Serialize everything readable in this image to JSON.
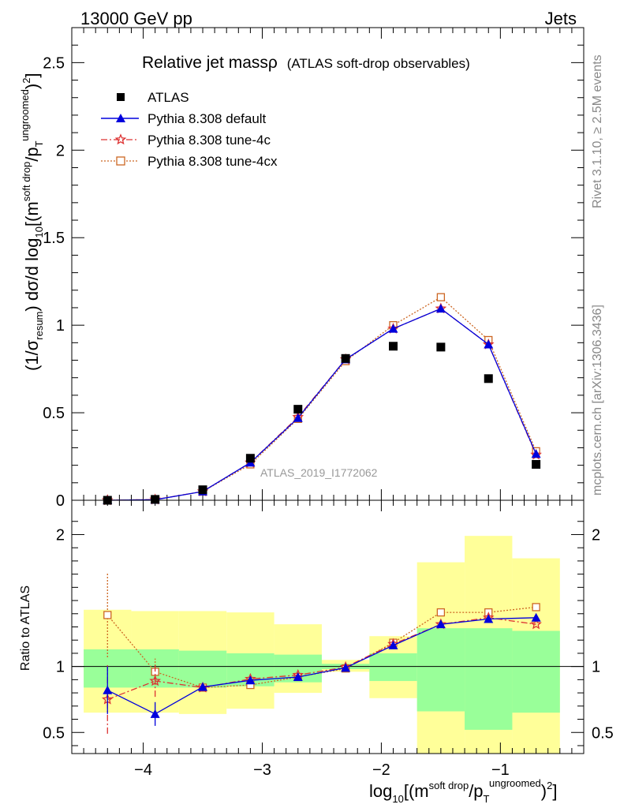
{
  "header": {
    "left": "13000 GeV pp",
    "right": "Jets",
    "title_main": "Relative jet massρ",
    "title_sub": "(ATLAS soft-drop observables)",
    "rivet": "Rivet 3.1.10, ≥ 2.5M events",
    "mcplots": "mcplots.cern.ch [arXiv:1306.3436]",
    "analysis": "ATLAS_2019_I1772062"
  },
  "axes": {
    "ylabel_main": "(1/σresum) dσ/d log10[(m^{soft drop}/p_T^{ungroomed})^2]",
    "ylabel_ratio": "Ratio to ATLAS",
    "xlabel": "log10[(m^{soft drop}/p_T^{ungroomed})^2]"
  },
  "colors": {
    "atlas": "#000000",
    "default": "#0000dd",
    "tune4c": "#dd3333",
    "tune4cx": "#cc6622",
    "band_green": "#99ff99",
    "band_yellow": "#ffff99"
  },
  "chart_data": [
    {
      "type": "line",
      "title": "Relative jet massρ (ATLAS soft-drop observables)",
      "xlabel": "log10[(m^{soft drop}/p_T^{ungroomed})^2]",
      "ylabel": "(1/σresum) dσ/d log10[(m^{soft drop}/p_T^{ungroomed})^2]",
      "xlim": [
        -4.6,
        -0.3
      ],
      "ylim": [
        0,
        2.7
      ],
      "yticks": [
        0,
        0.5,
        1,
        1.5,
        2,
        2.5
      ],
      "legend_position": "top-left",
      "x": [
        -4.3,
        -3.9,
        -3.5,
        -3.1,
        -2.7,
        -2.3,
        -1.9,
        -1.5,
        -1.1,
        -0.7
      ],
      "series": [
        {
          "name": "ATLAS",
          "marker": "square",
          "values": [
            0.0,
            0.005,
            0.06,
            0.24,
            0.52,
            0.81,
            0.88,
            0.875,
            0.695,
            0.205
          ]
        },
        {
          "name": "Pythia 8.308 default",
          "marker": "triangle",
          "values": [
            0.0,
            0.003,
            0.05,
            0.215,
            0.47,
            0.805,
            0.98,
            1.095,
            0.89,
            0.265
          ]
        },
        {
          "name": "Pythia 8.308 tune-4c",
          "marker": "star",
          "values": [
            0.0,
            0.004,
            0.05,
            0.215,
            0.475,
            0.805,
            0.98,
            1.095,
            0.89,
            0.26
          ]
        },
        {
          "name": "Pythia 8.308 tune-4cx",
          "marker": "open-square",
          "values": [
            0.0,
            0.004,
            0.05,
            0.205,
            0.465,
            0.795,
            1.0,
            1.16,
            0.915,
            0.28
          ]
        }
      ]
    },
    {
      "type": "line",
      "ylabel": "Ratio to ATLAS",
      "xlabel": "log10[(m^{soft drop}/p_T^{ungroomed})^2]",
      "xlim": [
        -4.6,
        -0.3
      ],
      "ylim": [
        0.34,
        2.26
      ],
      "yticks": [
        0.5,
        1,
        2
      ],
      "xticks": [
        -4,
        -3,
        -2,
        -1
      ],
      "x": [
        -4.3,
        -3.9,
        -3.5,
        -3.1,
        -2.7,
        -2.3,
        -1.9,
        -1.5,
        -1.1,
        -0.7
      ],
      "bin_edges": [
        -4.5,
        -4.1,
        -3.7,
        -3.3,
        -2.9,
        -2.5,
        -2.1,
        -1.7,
        -1.3,
        -0.9,
        -0.5
      ],
      "bands": {
        "green": {
          "low": [
            0.84,
            0.84,
            0.84,
            0.85,
            0.88,
            0.98,
            0.89,
            0.66,
            0.52,
            0.65
          ],
          "high": [
            1.13,
            1.13,
            1.12,
            1.1,
            1.09,
            1.02,
            1.1,
            1.29,
            1.29,
            1.27
          ]
        },
        "yellow": {
          "low": [
            0.65,
            0.65,
            0.64,
            0.68,
            0.8,
            0.96,
            0.76,
            0.34,
            0.34,
            0.34
          ],
          "high": [
            1.43,
            1.42,
            1.42,
            1.41,
            1.32,
            1.05,
            1.23,
            1.79,
            1.99,
            1.82
          ]
        }
      },
      "series": [
        {
          "name": "Pythia 8.308 default",
          "values": [
            0.82,
            0.64,
            0.845,
            0.895,
            0.92,
            0.99,
            1.16,
            1.32,
            1.36,
            1.37
          ],
          "err": [
            0.18,
            0.09,
            0.03,
            0.02,
            0.015,
            0.01,
            0.01,
            0.01,
            0.01,
            0.01
          ]
        },
        {
          "name": "Pythia 8.308 tune-4c",
          "values": [
            0.75,
            0.89,
            0.84,
            0.905,
            0.935,
            0.995,
            1.17,
            1.32,
            1.37,
            1.32
          ],
          "err": [
            0.26,
            0.12,
            0.03,
            0.02,
            0.015,
            0.01,
            0.01,
            0.01,
            0.01,
            0.01
          ]
        },
        {
          "name": "Pythia 8.308 tune-4cx",
          "values": [
            1.39,
            0.96,
            0.84,
            0.86,
            0.92,
            0.985,
            1.18,
            1.41,
            1.41,
            1.45
          ],
          "err": [
            0.32,
            0.1,
            0.03,
            0.02,
            0.015,
            0.01,
            0.01,
            0.01,
            0.01,
            0.01
          ]
        }
      ]
    }
  ]
}
